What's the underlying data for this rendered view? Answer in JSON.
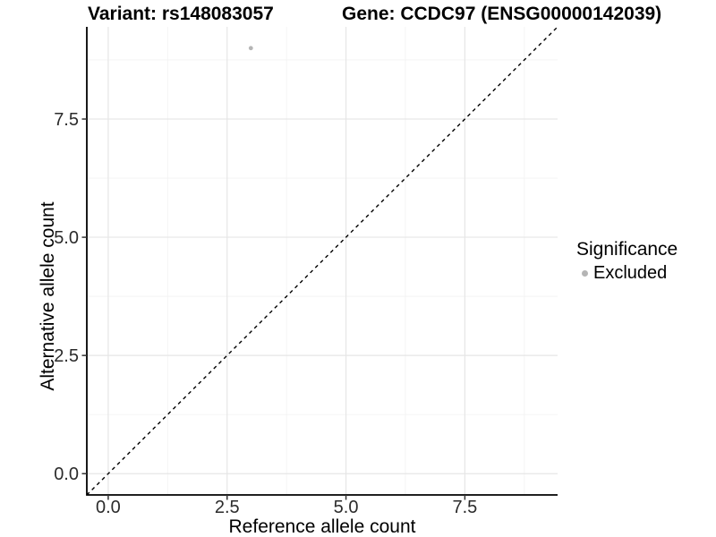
{
  "figure": {
    "title_left": "Variant: rs148083057",
    "title_right": "Gene: CCDC97 (ENSG00000142039)"
  },
  "chart_data": {
    "type": "scatter",
    "xlabel": "Reference allele count",
    "ylabel": "Alternative allele count",
    "xlim": [
      -0.45,
      9.45
    ],
    "ylim": [
      -0.45,
      9.45
    ],
    "x_ticks": {
      "values": [
        0,
        2.5,
        5,
        7.5
      ],
      "labels": [
        "0.0",
        "2.5",
        "5.0",
        "7.5"
      ]
    },
    "y_ticks": {
      "values": [
        0,
        2.5,
        5,
        7.5
      ],
      "labels": [
        "0.0",
        "2.5",
        "5.0",
        "7.5"
      ]
    },
    "x_minor": [
      1.25,
      3.75,
      6.25,
      8.75
    ],
    "y_minor": [
      1.25,
      3.75,
      6.25,
      8.75
    ],
    "grid": "major_and_minor",
    "series": [
      {
        "name": "Excluded",
        "color": "#b5b5b5",
        "points": [
          {
            "x": 3,
            "y": 9
          }
        ]
      }
    ],
    "reference_line": {
      "kind": "identity",
      "slope": 1,
      "intercept": 0,
      "linetype": "dashed",
      "color": "#000000"
    },
    "legend": {
      "title": "Significance",
      "position": "right",
      "items": [
        {
          "label": "Excluded",
          "color": "#b5b5b5",
          "marker": "circle"
        }
      ]
    }
  },
  "colors": {
    "grid_major": "#e6e6e6",
    "grid_minor": "#f3f3f3",
    "axis_line": "#000000",
    "tick_mark": "#333333",
    "tick_text": "#2b2b2b"
  }
}
